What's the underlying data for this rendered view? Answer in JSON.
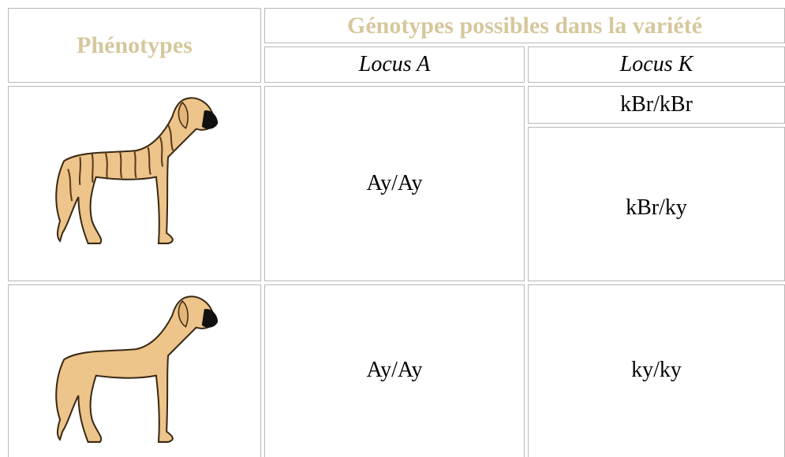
{
  "header": {
    "title": "Phénotypes",
    "group": "Génotypes possibles dans la variété",
    "columns": [
      "Locus A",
      "Locus K"
    ]
  },
  "rows": [
    {
      "locus_a": "Ay/Ay",
      "locus_k": [
        "kBr/kBr",
        "kBr/ky"
      ]
    },
    {
      "locus_a": "Ay/Ay",
      "locus_k": [
        "ky/ky"
      ]
    }
  ]
}
